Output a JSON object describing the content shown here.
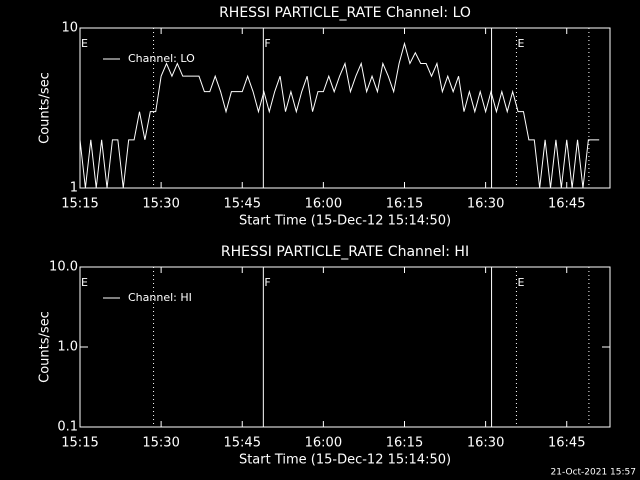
{
  "chart_data": [
    {
      "type": "line",
      "title": "RHESSI PARTICLE_RATE Channel: LO",
      "xlabel": "Start Time (15-Dec-12 15:14:50)",
      "ylabel": "Counts/sec",
      "x": [
        915,
        916,
        917,
        918,
        919,
        920,
        921,
        922,
        923,
        924,
        925,
        926,
        927,
        928,
        929,
        930,
        931,
        932,
        933,
        934,
        935,
        936,
        937,
        938,
        939,
        940,
        941,
        942,
        943,
        944,
        945,
        946,
        947,
        948,
        949,
        950,
        951,
        952,
        953,
        954,
        955,
        956,
        957,
        958,
        959,
        960,
        961,
        962,
        963,
        964,
        965,
        966,
        967,
        968,
        969,
        970,
        971,
        972,
        973,
        974,
        975,
        976,
        977,
        978,
        979,
        980,
        981,
        982,
        983,
        984,
        985,
        986,
        987,
        988,
        989,
        990,
        991,
        992,
        993,
        994,
        995,
        996,
        997,
        998,
        999,
        1000,
        1001,
        1002,
        1003,
        1004,
        1005,
        1006,
        1007,
        1008,
        1009,
        1010,
        1011
      ],
      "series": [
        {
          "name": "Channel: LO",
          "color": "#ffffff",
          "values": [
            2,
            1,
            2,
            1,
            2,
            1,
            2,
            2,
            1,
            2,
            2,
            3,
            2,
            3,
            3,
            5,
            6,
            5,
            6,
            5,
            5,
            5,
            5,
            4,
            4,
            5,
            4,
            3,
            4,
            4,
            4,
            5,
            4,
            3,
            4,
            3,
            4,
            5,
            3,
            4,
            3,
            4,
            5,
            3,
            4,
            4,
            5,
            4,
            5,
            6,
            4,
            5,
            6,
            4,
            5,
            4,
            6,
            5,
            4,
            6,
            8,
            6,
            7,
            6,
            6,
            5,
            6,
            4,
            5,
            4,
            5,
            3,
            4,
            3,
            4,
            3,
            4,
            3,
            4,
            3,
            4,
            3,
            3,
            2,
            2,
            1,
            2,
            1,
            2,
            1,
            2,
            1,
            2,
            1,
            2,
            2,
            2
          ]
        }
      ],
      "xlim": [
        915,
        1013
      ],
      "xticks": [
        {
          "value": 915,
          "label": "15:15"
        },
        {
          "value": 930,
          "label": "15:30"
        },
        {
          "value": 945,
          "label": "15:45"
        },
        {
          "value": 960,
          "label": "16:00"
        },
        {
          "value": 975,
          "label": "16:15"
        },
        {
          "value": 990,
          "label": "16:30"
        },
        {
          "value": 1005,
          "label": "16:45"
        }
      ],
      "ylim": [
        1,
        10
      ],
      "yticks": [
        1,
        10
      ],
      "log_y": true,
      "legend": "upper left",
      "vlines": [
        {
          "x": 928.6,
          "style": "dotted"
        },
        {
          "x": 948.9,
          "style": "solid"
        },
        {
          "x": 991.1,
          "style": "solid"
        },
        {
          "x": 995.7,
          "style": "dotted"
        },
        {
          "x": 1009.1,
          "style": "dotted"
        }
      ],
      "annotations": [
        {
          "x": 915,
          "text": "E"
        },
        {
          "x": 948.9,
          "text": "F"
        },
        {
          "x": 995.7,
          "text": "E"
        }
      ]
    },
    {
      "type": "line",
      "title": "RHESSI PARTICLE_RATE Channel: HI",
      "xlabel": "Start Time (15-Dec-12 15:14:50)",
      "ylabel": "Counts/sec",
      "x": [],
      "series": [
        {
          "name": "Channel: HI",
          "color": "#ffffff",
          "values": []
        }
      ],
      "xlim": [
        915,
        1013
      ],
      "xticks": [
        {
          "value": 915,
          "label": "15:15"
        },
        {
          "value": 930,
          "label": "15:30"
        },
        {
          "value": 945,
          "label": "15:45"
        },
        {
          "value": 960,
          "label": "16:00"
        },
        {
          "value": 975,
          "label": "16:15"
        },
        {
          "value": 990,
          "label": "16:30"
        },
        {
          "value": 1005,
          "label": "16:45"
        }
      ],
      "ylim": [
        0.1,
        10
      ],
      "yticks": [
        {
          "value": 0.1,
          "label": "0.1"
        },
        {
          "value": 1,
          "label": "1.0"
        },
        {
          "value": 10,
          "label": "10.0"
        }
      ],
      "log_y": true,
      "legend": "upper left",
      "vlines": [
        {
          "x": 928.6,
          "style": "dotted"
        },
        {
          "x": 948.9,
          "style": "solid"
        },
        {
          "x": 991.1,
          "style": "solid"
        },
        {
          "x": 995.7,
          "style": "dotted"
        },
        {
          "x": 1009.1,
          "style": "dotted"
        }
      ],
      "annotations": [
        {
          "x": 915,
          "text": "E"
        },
        {
          "x": 948.9,
          "text": "F"
        },
        {
          "x": 995.7,
          "text": "E"
        }
      ]
    }
  ],
  "footer": "21-Oct-2021 15:57"
}
